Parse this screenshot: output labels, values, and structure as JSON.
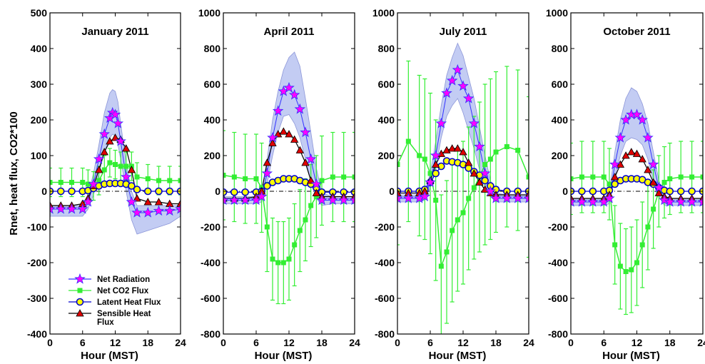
{
  "figure": {
    "ylabel": "Rnet, heat flux, CO2*100",
    "xlabel": "Hour (MST)"
  },
  "legend": [
    {
      "name": "Net Radiation",
      "marker": "star",
      "color": "#ff00ff",
      "edge": "#3333ff"
    },
    {
      "name": "Net CO2 Flux",
      "marker": "square",
      "color": "#00ff00",
      "edge": "#00ff00"
    },
    {
      "name": "Latent Heat Flux",
      "marker": "circle",
      "color": "#ffff00",
      "edge": "#0000cc"
    },
    {
      "name": "Sensible Heat",
      "name2": "Flux",
      "marker": "triangle",
      "color": "#e00000",
      "edge": "#000000"
    }
  ],
  "colors": {
    "net_radiation": "#ff00ff",
    "net_radiation_edge": "#3333ff",
    "band": "#aab6ee",
    "co2": "#33ee33",
    "latent_face": "#ffff00",
    "latent_edge": "#0000cc",
    "sensible_face": "#e00000",
    "zero_line": "#000000"
  },
  "chart_data": [
    {
      "type": "line",
      "title": "January 2011",
      "xlabel": "Hour (MST)",
      "ylabel": "Rnet, heat flux, CO2*100",
      "xlim": [
        0,
        24
      ],
      "ylim": [
        -400,
        500
      ],
      "xticks": [
        "0",
        "6",
        "12",
        "18",
        "24"
      ],
      "yticks": [
        "-400",
        "-300",
        "-200",
        "-100",
        "0",
        "100",
        "200",
        "300",
        "400",
        "500"
      ],
      "series": [
        {
          "name": "Net Radiation",
          "x": [
            0,
            2,
            4,
            6,
            7,
            8,
            9,
            10,
            11,
            11.5,
            12,
            12.5,
            13,
            14,
            15,
            16,
            18,
            20,
            22,
            24
          ],
          "y": [
            -50,
            -50,
            -50,
            -50,
            -30,
            20,
            90,
            160,
            205,
            220,
            215,
            190,
            140,
            40,
            -30,
            -60,
            -60,
            -55,
            -55,
            -50
          ],
          "band_upper": [
            -40,
            -40,
            -40,
            -40,
            -10,
            50,
            130,
            220,
            275,
            285,
            280,
            250,
            190,
            80,
            0,
            -40,
            -40,
            -40,
            -40,
            -40
          ],
          "band_lower": [
            -70,
            -70,
            -70,
            -70,
            -50,
            -10,
            50,
            110,
            150,
            160,
            155,
            130,
            90,
            0,
            -80,
            -120,
            -110,
            -100,
            -90,
            -70
          ]
        },
        {
          "name": "Net CO2 Flux",
          "x": [
            0,
            2,
            4,
            6,
            7,
            8,
            9,
            10,
            11,
            12,
            13,
            14,
            15,
            16,
            18,
            20,
            22,
            24
          ],
          "y": [
            25,
            25,
            25,
            25,
            20,
            15,
            30,
            60,
            80,
            75,
            70,
            70,
            70,
            40,
            35,
            30,
            30,
            30
          ],
          "err": [
            40,
            40,
            40,
            40,
            40,
            40,
            40,
            40,
            40,
            40,
            40,
            40,
            40,
            40,
            40,
            40,
            40,
            40
          ]
        },
        {
          "name": "Latent Heat Flux",
          "x": [
            0,
            2,
            4,
            6,
            7,
            8,
            9,
            10,
            11,
            12,
            13,
            14,
            15,
            16,
            18,
            20,
            22,
            24
          ],
          "y": [
            0,
            0,
            0,
            0,
            2,
            8,
            15,
            20,
            22,
            22,
            22,
            20,
            15,
            5,
            0,
            0,
            0,
            0
          ]
        },
        {
          "name": "Sensible Heat Flux",
          "x": [
            0,
            2,
            4,
            6,
            7,
            8,
            9,
            10,
            11,
            12,
            13,
            14,
            15,
            16,
            18,
            20,
            22,
            24
          ],
          "y": [
            -40,
            -40,
            -40,
            -35,
            -20,
            15,
            60,
            110,
            140,
            150,
            145,
            120,
            60,
            -20,
            -30,
            -30,
            -35,
            -35
          ]
        }
      ]
    },
    {
      "type": "line",
      "title": "April 2011",
      "xlabel": "Hour (MST)",
      "xlim": [
        0,
        24
      ],
      "ylim": [
        -800,
        1000
      ],
      "xticks": [
        "0",
        "6",
        "12",
        "18",
        "24"
      ],
      "yticks": [
        "-800",
        "-600",
        "-400",
        "-200",
        "0",
        "200",
        "400",
        "600",
        "800",
        "1000"
      ],
      "series": [
        {
          "name": "Net Radiation",
          "x": [
            0,
            2,
            4,
            6,
            7,
            8,
            9,
            10,
            11,
            12,
            13,
            14,
            15,
            16,
            17,
            18,
            20,
            22,
            24
          ],
          "y": [
            -50,
            -50,
            -50,
            -50,
            -30,
            100,
            300,
            450,
            560,
            580,
            540,
            460,
            330,
            180,
            40,
            -50,
            -50,
            -50,
            -50
          ],
          "band_upper": [
            -30,
            -30,
            -30,
            -30,
            0,
            180,
            400,
            560,
            680,
            750,
            780,
            700,
            520,
            330,
            130,
            -10,
            -30,
            -30,
            -30
          ],
          "band_lower": [
            -70,
            -70,
            -70,
            -70,
            -60,
            40,
            200,
            330,
            420,
            430,
            380,
            300,
            180,
            60,
            -40,
            -80,
            -70,
            -70,
            -70
          ]
        },
        {
          "name": "Net CO2 Flux",
          "x": [
            0,
            2,
            4,
            6,
            7,
            8,
            9,
            10,
            11,
            12,
            13,
            14,
            15,
            16,
            17,
            18,
            20,
            22,
            24
          ],
          "y": [
            90,
            80,
            70,
            70,
            20,
            -200,
            -380,
            -400,
            -400,
            -380,
            -300,
            -220,
            -160,
            -80,
            -30,
            60,
            80,
            80,
            80
          ],
          "err": [
            250,
            250,
            250,
            250,
            250,
            250,
            230,
            230,
            230,
            230,
            230,
            230,
            230,
            230,
            230,
            250,
            250,
            250,
            250
          ]
        },
        {
          "name": "Latent Heat Flux",
          "x": [
            0,
            2,
            4,
            6,
            7,
            8,
            9,
            10,
            11,
            12,
            13,
            14,
            15,
            16,
            17,
            18,
            20,
            22,
            24
          ],
          "y": [
            -5,
            -5,
            -5,
            -5,
            0,
            30,
            50,
            60,
            70,
            70,
            70,
            60,
            50,
            40,
            20,
            -5,
            -5,
            -5,
            -5
          ]
        },
        {
          "name": "Sensible Heat Flux",
          "x": [
            0,
            2,
            4,
            6,
            7,
            8,
            9,
            10,
            11,
            12,
            13,
            14,
            15,
            16,
            17,
            18,
            20,
            22,
            24
          ],
          "y": [
            -40,
            -40,
            -40,
            -30,
            0,
            160,
            270,
            320,
            335,
            320,
            290,
            230,
            160,
            60,
            -10,
            -30,
            -30,
            -30,
            -30
          ]
        }
      ]
    },
    {
      "type": "line",
      "title": "July 2011",
      "xlabel": "Hour (MST)",
      "xlim": [
        0,
        24
      ],
      "ylim": [
        -800,
        1000
      ],
      "xticks": [
        "0",
        "6",
        "12",
        "18",
        "24"
      ],
      "yticks": [
        "-800",
        "-600",
        "-400",
        "-200",
        "0",
        "200",
        "400",
        "600",
        "800",
        "1000"
      ],
      "series": [
        {
          "name": "Net Radiation",
          "x": [
            0,
            2,
            4,
            5,
            6,
            7,
            8,
            9,
            10,
            11,
            12,
            13,
            14,
            15,
            16,
            17,
            18,
            20,
            22,
            24
          ],
          "y": [
            -40,
            -40,
            -40,
            -30,
            50,
            200,
            380,
            550,
            620,
            680,
            590,
            520,
            380,
            250,
            100,
            0,
            -40,
            -40,
            -40,
            -40
          ],
          "band_upper": [
            -20,
            -20,
            -20,
            0,
            100,
            280,
            480,
            650,
            750,
            830,
            760,
            640,
            520,
            360,
            200,
            60,
            -10,
            -20,
            -20,
            -20
          ],
          "band_lower": [
            -60,
            -60,
            -60,
            -50,
            20,
            130,
            300,
            420,
            480,
            520,
            440,
            340,
            240,
            120,
            30,
            -30,
            -60,
            -60,
            -60,
            -60
          ]
        },
        {
          "name": "Net CO2 Flux",
          "x": [
            0,
            2,
            4,
            5,
            6,
            7,
            8,
            9,
            10,
            11,
            12,
            13,
            14,
            15,
            16,
            17,
            18,
            20,
            22,
            24
          ],
          "y": [
            150,
            280,
            200,
            180,
            100,
            -50,
            -420,
            -340,
            -220,
            -160,
            -120,
            -40,
            20,
            80,
            150,
            180,
            220,
            250,
            230,
            80
          ],
          "err": [
            450,
            450,
            450,
            450,
            450,
            450,
            400,
            400,
            400,
            400,
            400,
            400,
            400,
            420,
            450,
            450,
            450,
            450,
            450,
            450
          ]
        },
        {
          "name": "Latent Heat Flux",
          "x": [
            0,
            2,
            4,
            5,
            6,
            7,
            8,
            9,
            10,
            11,
            12,
            13,
            14,
            15,
            16,
            17,
            18,
            20,
            22,
            24
          ],
          "y": [
            0,
            0,
            0,
            10,
            50,
            100,
            140,
            170,
            165,
            160,
            150,
            130,
            110,
            90,
            60,
            30,
            10,
            0,
            0,
            0
          ]
        },
        {
          "name": "Sensible Heat Flux",
          "x": [
            0,
            2,
            4,
            5,
            6,
            7,
            8,
            9,
            10,
            11,
            12,
            13,
            14,
            15,
            16,
            17,
            18,
            20,
            22,
            24
          ],
          "y": [
            -10,
            -10,
            -10,
            0,
            60,
            150,
            210,
            230,
            240,
            240,
            220,
            160,
            100,
            50,
            10,
            -10,
            -20,
            -20,
            -20,
            -20
          ]
        }
      ]
    },
    {
      "type": "line",
      "title": "October 2011",
      "xlabel": "Hour (MST)",
      "xlim": [
        0,
        24
      ],
      "ylim": [
        -800,
        1000
      ],
      "xticks": [
        "0",
        "6",
        "12",
        "18",
        "24"
      ],
      "yticks": [
        "-800",
        "-600",
        "-400",
        "-200",
        "0",
        "200",
        "400",
        "600",
        "800",
        "1000"
      ],
      "series": [
        {
          "name": "Net Radiation",
          "x": [
            0,
            2,
            4,
            6,
            7,
            8,
            9,
            10,
            11,
            12,
            13,
            14,
            15,
            16,
            17,
            18,
            20,
            22,
            24
          ],
          "y": [
            -60,
            -60,
            -60,
            -60,
            -40,
            150,
            300,
            400,
            430,
            430,
            400,
            300,
            150,
            20,
            -50,
            -60,
            -60,
            -60,
            -60
          ],
          "band_upper": [
            -40,
            -40,
            -40,
            -40,
            0,
            220,
            400,
            520,
            580,
            560,
            490,
            380,
            220,
            60,
            -20,
            -40,
            -40,
            -40,
            -40
          ],
          "band_lower": [
            -80,
            -80,
            -80,
            -80,
            -70,
            80,
            200,
            280,
            300,
            290,
            260,
            180,
            60,
            -30,
            -80,
            -80,
            -80,
            -80,
            -80
          ]
        },
        {
          "name": "Net CO2 Flux",
          "x": [
            0,
            2,
            4,
            6,
            7,
            8,
            9,
            10,
            11,
            12,
            13,
            14,
            15,
            16,
            17,
            18,
            20,
            22,
            24
          ],
          "y": [
            70,
            80,
            80,
            80,
            40,
            -300,
            -420,
            -450,
            -440,
            -400,
            -300,
            -200,
            -100,
            0,
            50,
            70,
            80,
            80,
            80
          ],
          "err": [
            200,
            200,
            200,
            200,
            200,
            220,
            240,
            240,
            240,
            240,
            240,
            240,
            220,
            200,
            200,
            200,
            200,
            200,
            200
          ]
        },
        {
          "name": "Latent Heat Flux",
          "x": [
            0,
            2,
            4,
            6,
            7,
            8,
            9,
            10,
            11,
            12,
            13,
            14,
            15,
            16,
            17,
            18,
            20,
            22,
            24
          ],
          "y": [
            0,
            0,
            0,
            0,
            5,
            40,
            60,
            70,
            70,
            70,
            65,
            50,
            40,
            20,
            5,
            0,
            0,
            0,
            0
          ]
        },
        {
          "name": "Sensible Heat Flux",
          "x": [
            0,
            2,
            4,
            6,
            7,
            8,
            9,
            10,
            11,
            12,
            13,
            14,
            15,
            16,
            17,
            18,
            20,
            22,
            24
          ],
          "y": [
            -40,
            -40,
            -40,
            -40,
            -20,
            80,
            150,
            200,
            220,
            210,
            180,
            120,
            50,
            -10,
            -30,
            -40,
            -40,
            -40,
            -40
          ]
        }
      ]
    }
  ]
}
